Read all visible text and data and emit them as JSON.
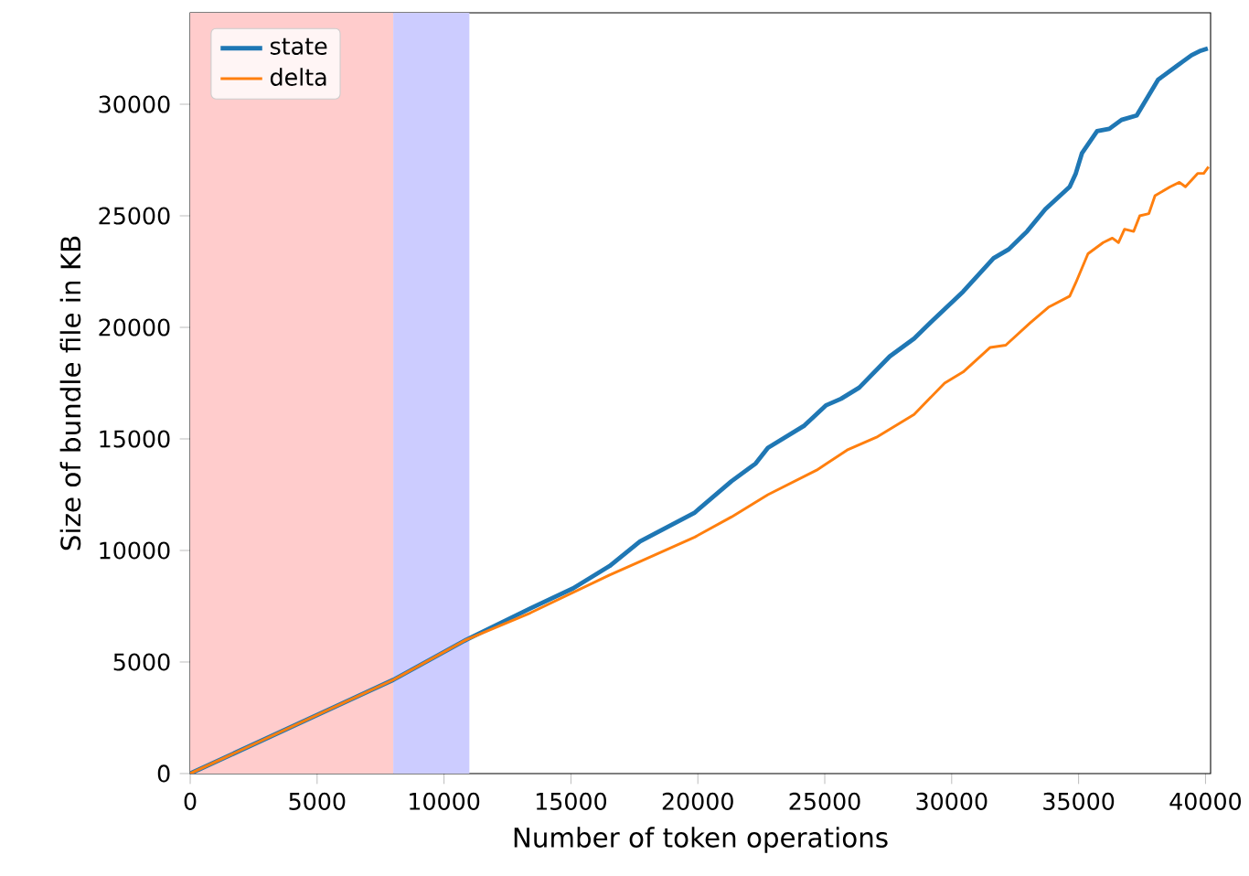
{
  "chart_data": {
    "type": "line",
    "xlabel": "Number of token operations",
    "ylabel": "Size of bundle file in KB",
    "xlim": [
      0,
      40200
    ],
    "ylim": [
      0,
      34100
    ],
    "xticks": [
      0,
      5000,
      10000,
      15000,
      20000,
      25000,
      30000,
      35000,
      40000
    ],
    "yticks": [
      0,
      5000,
      10000,
      15000,
      20000,
      25000,
      30000
    ],
    "legend": "top left",
    "grid": false,
    "line_style": "solid",
    "marker": "none",
    "bands": [
      {
        "axis": "x",
        "from": 0,
        "to": 8000,
        "color": "#ffcccc"
      },
      {
        "axis": "x",
        "from": 8000,
        "to": 11000,
        "color": "#ccccff"
      }
    ],
    "series": [
      {
        "name": "state",
        "color": "#1f77b4",
        "x": [
          0,
          8000,
          10880,
          13400,
          15080,
          16520,
          17720,
          19880,
          21320,
          22280,
          22760,
          24200,
          25040,
          25640,
          26360,
          27560,
          28520,
          29240,
          30450,
          31650,
          32250,
          32970,
          33690,
          34650,
          34890,
          35130,
          35730,
          36210,
          36690,
          37290,
          38130,
          38850,
          39090,
          39450,
          39810,
          40090
        ],
        "values": [
          0,
          4200,
          6000,
          7400,
          8300,
          9300,
          10400,
          11700,
          13100,
          13900,
          14600,
          15600,
          16500,
          16800,
          17300,
          18700,
          19500,
          20300,
          21600,
          23100,
          23500,
          24300,
          25300,
          26300,
          26900,
          27800,
          28800,
          28900,
          29300,
          29500,
          31100,
          31700,
          31900,
          32200,
          32400,
          32500
        ]
      },
      {
        "name": "delta",
        "color": "#ff7f0e",
        "x": [
          0,
          8000,
          10880,
          13400,
          16520,
          17720,
          19880,
          21320,
          22040,
          22760,
          24680,
          25880,
          27080,
          28520,
          29720,
          30450,
          31520,
          32130,
          33090,
          33810,
          34650,
          34890,
          35370,
          35970,
          36330,
          36570,
          36810,
          37170,
          37410,
          37770,
          38010,
          38610,
          38970,
          39210,
          39690,
          39930,
          40120
        ],
        "values": [
          0,
          4200,
          6000,
          7200,
          8900,
          9500,
          10600,
          11500,
          12000,
          12500,
          13600,
          14500,
          15100,
          16100,
          17500,
          18000,
          19100,
          19200,
          20200,
          20900,
          21400,
          22000,
          23300,
          23800,
          24000,
          23800,
          24400,
          24300,
          25000,
          25100,
          25900,
          26300,
          26500,
          26300,
          26900,
          26900,
          27200
        ]
      }
    ]
  }
}
